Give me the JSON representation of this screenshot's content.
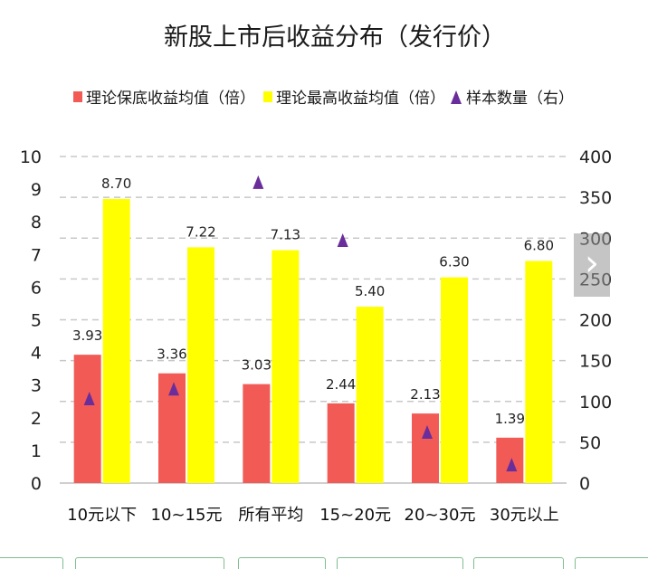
{
  "chart_data": {
    "type": "bar",
    "title": "新股上市后收益分布（发行价）",
    "categories": [
      "10元以下",
      "10~15元",
      "所有平均",
      "15~20元",
      "20~30元",
      "30元以上"
    ],
    "series": [
      {
        "name": "理论保底收益均值（倍）",
        "type": "bar",
        "axis": "left",
        "color": "#f25b55",
        "values": [
          3.93,
          3.36,
          3.03,
          2.44,
          2.13,
          1.39
        ],
        "labels": [
          "3.93",
          "3.36",
          "3.03",
          "2.44",
          "2.13",
          "1.39"
        ]
      },
      {
        "name": "理论最高收益均值（倍）",
        "type": "bar",
        "axis": "left",
        "color": "#ffff00",
        "values": [
          8.7,
          7.22,
          7.13,
          5.4,
          6.3,
          6.8
        ],
        "labels": [
          "8.70",
          "7.22",
          "7.13",
          "5.40",
          "6.30",
          "6.80"
        ]
      },
      {
        "name": "样本数量（右）",
        "type": "scatter",
        "axis": "right",
        "color": "#6a2d9c",
        "values": [
          103,
          115,
          368,
          297,
          62,
          22
        ]
      }
    ],
    "y_left": {
      "min": 0,
      "max": 10,
      "ticks": [
        "0",
        "1",
        "2",
        "3",
        "4",
        "5",
        "6",
        "7",
        "8",
        "9",
        "10"
      ]
    },
    "y_right": {
      "min": 0,
      "max": 400,
      "ticks": [
        "0",
        "50",
        "100",
        "150",
        "200",
        "250",
        "300",
        "350",
        "400"
      ]
    },
    "grid": true,
    "legend_position": "top"
  },
  "ui": {
    "next_arrow": "›",
    "next_icon": "chevron-right-icon"
  }
}
